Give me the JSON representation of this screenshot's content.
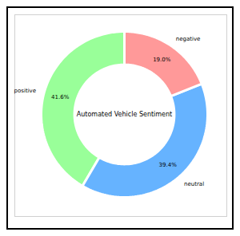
{
  "chart_data": {
    "type": "donut",
    "title": "Automated Vehicle Sentiment",
    "categories": [
      "positive",
      "neutral",
      "negative"
    ],
    "values": [
      41.6,
      39.4,
      19.0
    ],
    "value_labels": [
      "41.6%",
      "39.4%",
      "19.0%"
    ],
    "colors": [
      "#99ff99",
      "#66b3ff",
      "#ff9999"
    ],
    "data_labels": true
  }
}
